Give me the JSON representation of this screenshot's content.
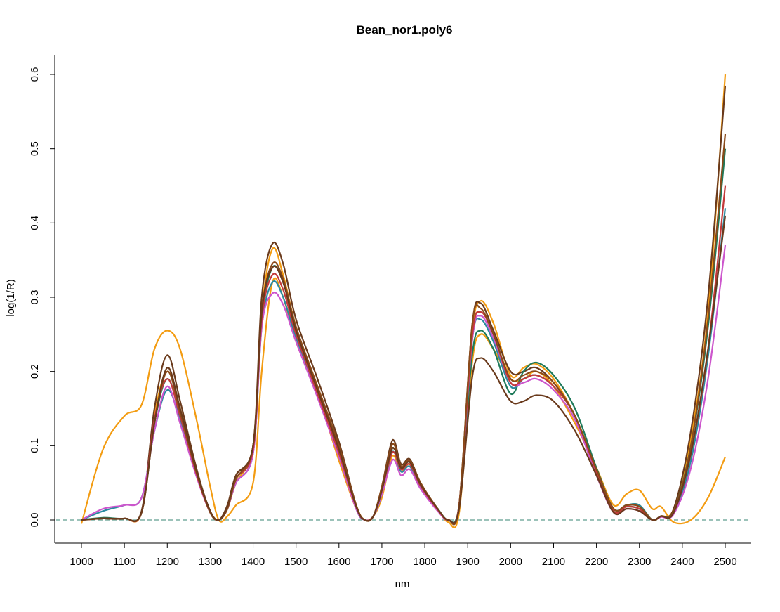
{
  "chart_data": {
    "type": "line",
    "title": "Bean_nor1.poly6",
    "xlabel": "nm",
    "ylabel": "log(1/R)",
    "xlim": [
      1000,
      2500
    ],
    "ylim": [
      0,
      0.6
    ],
    "x_ticks": [
      1000,
      1100,
      1200,
      1300,
      1400,
      1500,
      1600,
      1700,
      1800,
      1900,
      2000,
      2100,
      2200,
      2300,
      2400,
      2500
    ],
    "y_ticks": [
      0.0,
      0.1,
      0.2,
      0.3,
      0.4,
      0.5,
      0.6
    ],
    "y_tick_labels": [
      "0.0",
      "0.1",
      "0.2",
      "0.3",
      "0.4",
      "0.5",
      "0.6"
    ],
    "reference_line": {
      "y": 0.0,
      "style": "dashed",
      "color": "#5f9e8f"
    },
    "grid": false,
    "legend": "none",
    "palette": [
      "#1f7a5a",
      "#e08a12",
      "#6a3a1c",
      "#cc55cc",
      "#2a8aa0",
      "#c33a3a",
      "#8a5a2a",
      "#d070d0",
      "#3a7a3a",
      "#7a3a10"
    ],
    "x": [
      1000,
      1050,
      1100,
      1140,
      1170,
      1200,
      1230,
      1270,
      1300,
      1320,
      1340,
      1360,
      1400,
      1420,
      1445,
      1470,
      1500,
      1550,
      1600,
      1640,
      1660,
      1680,
      1700,
      1720,
      1730,
      1745,
      1765,
      1790,
      1830,
      1855,
      1880,
      1910,
      1930,
      1960,
      2000,
      2030,
      2060,
      2100,
      2150,
      2200,
      2240,
      2270,
      2300,
      2330,
      2350,
      2380,
      2420,
      2460,
      2500
    ],
    "series": [
      {
        "color": "#f39c12",
        "values": [
          -0.005,
          0.095,
          0.14,
          0.155,
          0.23,
          0.255,
          0.23,
          0.13,
          0.045,
          0.0,
          0.005,
          0.02,
          0.05,
          0.2,
          0.32,
          0.3,
          0.24,
          0.17,
          0.08,
          0.015,
          0.0,
          0.005,
          0.03,
          0.08,
          0.085,
          0.065,
          0.075,
          0.045,
          0.015,
          -0.003,
          0.01,
          0.21,
          0.25,
          0.23,
          0.19,
          0.19,
          0.2,
          0.18,
          0.13,
          0.07,
          0.02,
          0.035,
          0.04,
          0.015,
          0.018,
          -0.003,
          0.0,
          0.03,
          0.085
        ]
      },
      {
        "color": "#f39c12",
        "values": [
          0.0,
          0.002,
          0.002,
          0.01,
          0.14,
          0.2,
          0.15,
          0.06,
          0.012,
          0.0,
          0.015,
          0.05,
          0.1,
          0.28,
          0.365,
          0.33,
          0.26,
          0.18,
          0.1,
          0.02,
          0.0,
          0.005,
          0.04,
          0.095,
          0.1,
          0.07,
          0.08,
          0.05,
          0.015,
          0.0,
          0.02,
          0.25,
          0.295,
          0.265,
          0.195,
          0.205,
          0.21,
          0.19,
          0.14,
          0.07,
          0.015,
          0.02,
          0.02,
          0.0,
          0.005,
          0.015,
          0.11,
          0.28,
          0.6
        ]
      },
      {
        "color": "#6a3a1c",
        "values": [
          0.0,
          0.002,
          0.002,
          0.012,
          0.15,
          0.222,
          0.16,
          0.065,
          0.012,
          0.0,
          0.02,
          0.06,
          0.1,
          0.3,
          0.372,
          0.345,
          0.27,
          0.19,
          0.105,
          0.02,
          0.0,
          0.005,
          0.045,
          0.1,
          0.105,
          0.075,
          0.082,
          0.05,
          0.015,
          0.0,
          0.02,
          0.26,
          0.292,
          0.255,
          0.2,
          0.2,
          0.205,
          0.185,
          0.14,
          0.065,
          0.015,
          0.018,
          0.015,
          0.0,
          0.005,
          0.015,
          0.12,
          0.3,
          0.585
        ]
      },
      {
        "color": "#1f7a5a",
        "values": [
          0.0,
          0.003,
          0.002,
          0.01,
          0.13,
          0.19,
          0.14,
          0.06,
          0.01,
          0.0,
          0.015,
          0.055,
          0.095,
          0.27,
          0.34,
          0.32,
          0.255,
          0.175,
          0.095,
          0.018,
          0.0,
          0.005,
          0.04,
          0.09,
          0.095,
          0.07,
          0.078,
          0.048,
          0.015,
          0.0,
          0.02,
          0.22,
          0.255,
          0.23,
          0.17,
          0.2,
          0.212,
          0.195,
          0.15,
          0.07,
          0.015,
          0.02,
          0.018,
          0.0,
          0.005,
          0.012,
          0.1,
          0.26,
          0.5
        ]
      },
      {
        "color": "#2a8aa0",
        "values": [
          0.0,
          0.012,
          0.02,
          0.03,
          0.12,
          0.175,
          0.135,
          0.058,
          0.01,
          0.0,
          0.015,
          0.05,
          0.09,
          0.26,
          0.32,
          0.3,
          0.245,
          0.17,
          0.09,
          0.015,
          0.0,
          0.005,
          0.035,
          0.085,
          0.09,
          0.065,
          0.072,
          0.045,
          0.015,
          0.0,
          0.02,
          0.24,
          0.27,
          0.24,
          0.18,
          0.19,
          0.195,
          0.18,
          0.14,
          0.065,
          0.015,
          0.02,
          0.02,
          0.0,
          0.005,
          0.01,
          0.08,
          0.22,
          0.42
        ]
      },
      {
        "color": "#cc55cc",
        "values": [
          0.0,
          0.015,
          0.02,
          0.03,
          0.12,
          0.18,
          0.13,
          0.055,
          0.01,
          0.0,
          0.015,
          0.05,
          0.09,
          0.26,
          0.305,
          0.29,
          0.24,
          0.165,
          0.085,
          0.015,
          0.0,
          0.005,
          0.035,
          0.075,
          0.08,
          0.06,
          0.068,
          0.042,
          0.012,
          0.0,
          0.02,
          0.24,
          0.275,
          0.245,
          0.185,
          0.185,
          0.19,
          0.175,
          0.135,
          0.06,
          0.01,
          0.015,
          0.012,
          0.0,
          0.004,
          0.008,
          0.07,
          0.19,
          0.37
        ]
      },
      {
        "color": "#c33a3a",
        "values": [
          0.0,
          0.002,
          0.002,
          0.01,
          0.135,
          0.19,
          0.14,
          0.058,
          0.01,
          0.0,
          0.015,
          0.055,
          0.095,
          0.27,
          0.33,
          0.31,
          0.25,
          0.17,
          0.09,
          0.018,
          0.0,
          0.005,
          0.04,
          0.085,
          0.09,
          0.068,
          0.075,
          0.046,
          0.014,
          0.0,
          0.02,
          0.245,
          0.28,
          0.25,
          0.185,
          0.19,
          0.195,
          0.18,
          0.14,
          0.065,
          0.012,
          0.018,
          0.015,
          0.0,
          0.005,
          0.01,
          0.09,
          0.23,
          0.45
        ]
      },
      {
        "color": "#8a4a1a",
        "values": [
          0.0,
          0.002,
          0.002,
          0.01,
          0.13,
          0.2,
          0.145,
          0.06,
          0.01,
          0.0,
          0.015,
          0.055,
          0.1,
          0.28,
          0.345,
          0.325,
          0.26,
          0.18,
          0.1,
          0.02,
          0.0,
          0.005,
          0.045,
          0.095,
          0.1,
          0.072,
          0.08,
          0.05,
          0.015,
          0.0,
          0.02,
          0.26,
          0.285,
          0.25,
          0.19,
          0.195,
          0.2,
          0.185,
          0.14,
          0.068,
          0.015,
          0.02,
          0.018,
          0.0,
          0.005,
          0.012,
          0.1,
          0.27,
          0.52
        ]
      },
      {
        "color": "#6a3a1c",
        "values": [
          0.0,
          0.002,
          0.002,
          0.01,
          0.13,
          0.205,
          0.15,
          0.062,
          0.012,
          0.0,
          0.018,
          0.06,
          0.1,
          0.28,
          0.34,
          0.32,
          0.255,
          0.175,
          0.095,
          0.018,
          0.0,
          0.005,
          0.04,
          0.09,
          0.095,
          0.07,
          0.078,
          0.048,
          0.015,
          0.0,
          0.015,
          0.19,
          0.218,
          0.2,
          0.16,
          0.16,
          0.168,
          0.16,
          0.12,
          0.06,
          0.01,
          0.015,
          0.012,
          0.0,
          0.005,
          0.01,
          0.09,
          0.23,
          0.41
        ]
      }
    ]
  }
}
